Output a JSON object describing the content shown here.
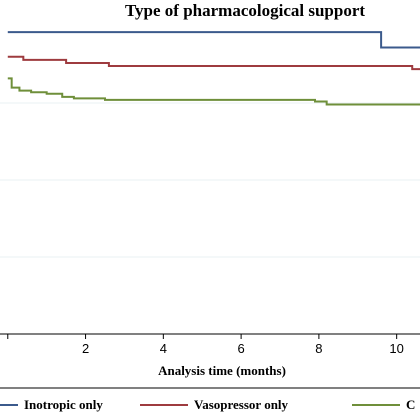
{
  "chart_data": {
    "type": "line",
    "title": "Type of pharmacological support",
    "xlabel": "Analysis time (months)",
    "ylabel": "",
    "xlim": [
      -0.2,
      10.6
    ],
    "ylim": [
      0,
      1
    ],
    "x_ticks": [
      2,
      4,
      6,
      8,
      10
    ],
    "x_tick_labels": [
      "2",
      "4",
      "6",
      "8",
      "10"
    ],
    "grid": "horizontal",
    "legend": "bottom",
    "series": [
      {
        "name": "Inotropic only",
        "color": "#3b5a8c",
        "x": [
          0,
          9.6,
          9.6,
          10.6
        ],
        "y": [
          0.98,
          0.98,
          0.93,
          0.93
        ]
      },
      {
        "name": "Vasopressor only",
        "color": "#9e3b3f",
        "x": [
          0,
          0.4,
          0.4,
          1.5,
          1.5,
          2.6,
          2.6,
          10.4,
          10.4,
          10.6
        ],
        "y": [
          0.9,
          0.9,
          0.89,
          0.89,
          0.88,
          0.88,
          0.87,
          0.87,
          0.86,
          0.86
        ]
      },
      {
        "name": "C",
        "color": "#6f8f3a",
        "x": [
          0,
          0.1,
          0.1,
          0.3,
          0.3,
          0.6,
          0.6,
          1.0,
          1.0,
          1.4,
          1.4,
          1.7,
          1.7,
          2.5,
          2.5,
          7.9,
          7.9,
          8.2,
          8.2,
          10.6
        ],
        "y": [
          0.83,
          0.83,
          0.8,
          0.8,
          0.79,
          0.79,
          0.785,
          0.785,
          0.78,
          0.78,
          0.77,
          0.77,
          0.765,
          0.765,
          0.76,
          0.76,
          0.755,
          0.755,
          0.745,
          0.745
        ]
      }
    ]
  }
}
